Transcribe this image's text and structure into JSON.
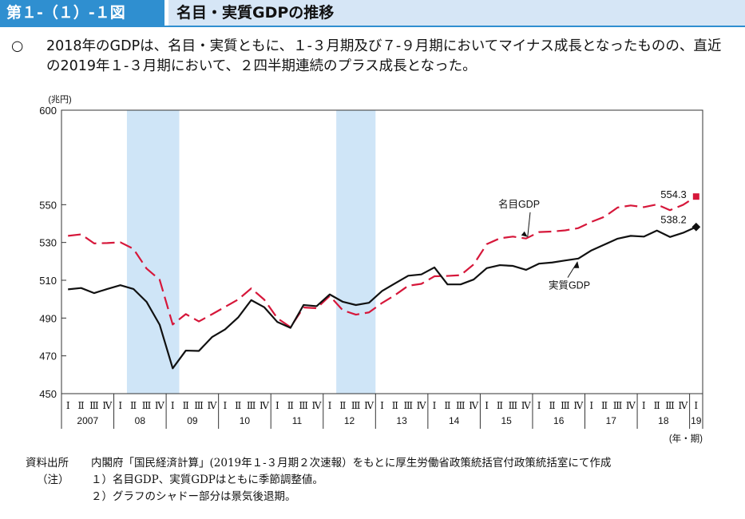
{
  "figure": {
    "number": "第１-（１）-１図",
    "title": "名目・実質GDPの推移",
    "summary_mark": "○",
    "summary": "2018年のGDPは、名目・実質ともに、１-３月期及び７-９月期においてマイナス成長となったものの、直近の2019年１-３月期において、２四半期連続のプラス成長となった。"
  },
  "chart_data": {
    "type": "line",
    "ylabel": "(兆円)",
    "xlabel": "(年・期)",
    "ylim": [
      450,
      600
    ],
    "yticks": [
      450,
      470,
      490,
      510,
      530,
      550,
      600
    ],
    "quarter_labels": [
      "Ⅰ",
      "Ⅱ",
      "Ⅲ",
      "Ⅳ"
    ],
    "years": [
      "2007",
      "08",
      "09",
      "10",
      "11",
      "12",
      "13",
      "14",
      "15",
      "16",
      "17",
      "18",
      "19"
    ],
    "recession_shading": [
      {
        "start": "2008 Ⅱ",
        "end": "2009 Ⅰ",
        "from_index": 5,
        "to_index": 9
      },
      {
        "start": "2012 Ⅱ",
        "end": "2012 Ⅳ",
        "from_index": 21,
        "to_index": 24
      }
    ],
    "series": [
      {
        "name": "名目GDP",
        "color": "#d6173a",
        "style": "dashed",
        "values": [
          533.5,
          534.3,
          529.5,
          529.7,
          530.1,
          526.6,
          516.2,
          510.3,
          486.6,
          492.1,
          488.2,
          492.0,
          495.9,
          499.8,
          505.7,
          499.7,
          489.9,
          485.2,
          495.6,
          495.2,
          501.7,
          494.1,
          491.8,
          493.0,
          498.0,
          502.2,
          507.1,
          508.1,
          512.1,
          512.3,
          512.7,
          518.4,
          529.1,
          532.2,
          533.1,
          532.1,
          535.5,
          535.8,
          536.4,
          537.6,
          540.9,
          543.6,
          548.5,
          549.6,
          548.7,
          550.1,
          547.1,
          549.9,
          554.3
        ]
      },
      {
        "name": "実質GDP",
        "color": "#111111",
        "style": "solid",
        "values": [
          505.2,
          505.9,
          503.2,
          505.4,
          507.4,
          505.4,
          498.6,
          486.5,
          463.4,
          472.8,
          472.6,
          479.9,
          484.0,
          490.3,
          499.5,
          495.7,
          487.9,
          484.8,
          496.9,
          496.3,
          502.5,
          498.6,
          496.9,
          498.1,
          504.3,
          508.4,
          512.4,
          513.1,
          516.8,
          507.8,
          507.8,
          510.4,
          516.4,
          518.0,
          517.6,
          515.5,
          518.8,
          519.4,
          520.5,
          521.5,
          525.8,
          528.9,
          532.0,
          533.5,
          533.1,
          536.3,
          532.9,
          535.1,
          538.2
        ]
      }
    ],
    "end_labels": [
      "554.3",
      "538.2"
    ],
    "annotations": [
      "名目GDP",
      "実質GDP"
    ]
  },
  "notes": [
    {
      "label": "資料出所",
      "text": "内閣府「国民経済計算」(2019年１-３月期２次速報）をもとに厚生労働省政策統括官付政策統括室にて作成"
    },
    {
      "label": "（注）",
      "text": "１）名目GDP、実質GDPはともに季節調整値。"
    },
    {
      "label": "",
      "text": "２）グラフのシャドー部分は景気後退期。"
    }
  ]
}
